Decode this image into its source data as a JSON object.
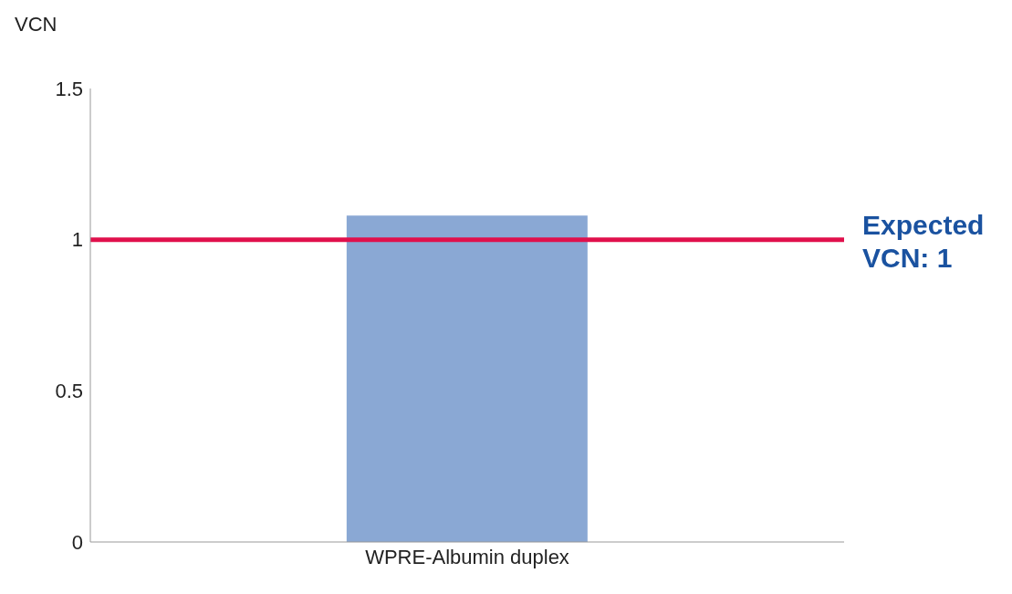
{
  "chart_data": {
    "type": "bar",
    "ylabel": "VCN",
    "categories": [
      "WPRE-Albumin duplex"
    ],
    "values": [
      1.08
    ],
    "color": "#8aa8d4",
    "ylim": [
      0,
      1.5
    ],
    "yticks": [
      0,
      0.5,
      1,
      1.5
    ],
    "grid": false,
    "ref_lines": [
      {
        "axis": "y",
        "value": 1,
        "label": "Expected VCN: 1",
        "color": "#e0104c"
      }
    ]
  }
}
